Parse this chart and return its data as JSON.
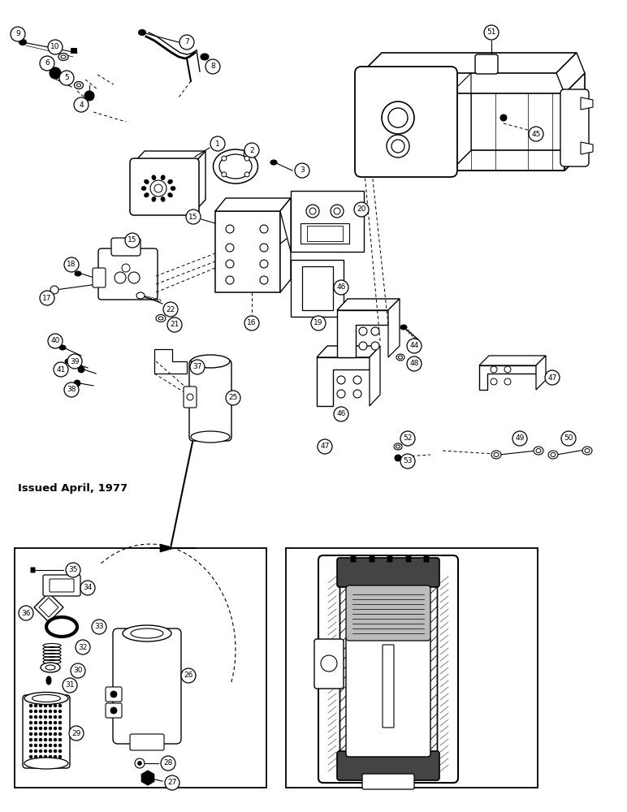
{
  "bg": "#ffffff",
  "lc": "black",
  "issued": "Issued April, 1977",
  "fig_w": 7.72,
  "fig_h": 10.0,
  "dpi": 100
}
